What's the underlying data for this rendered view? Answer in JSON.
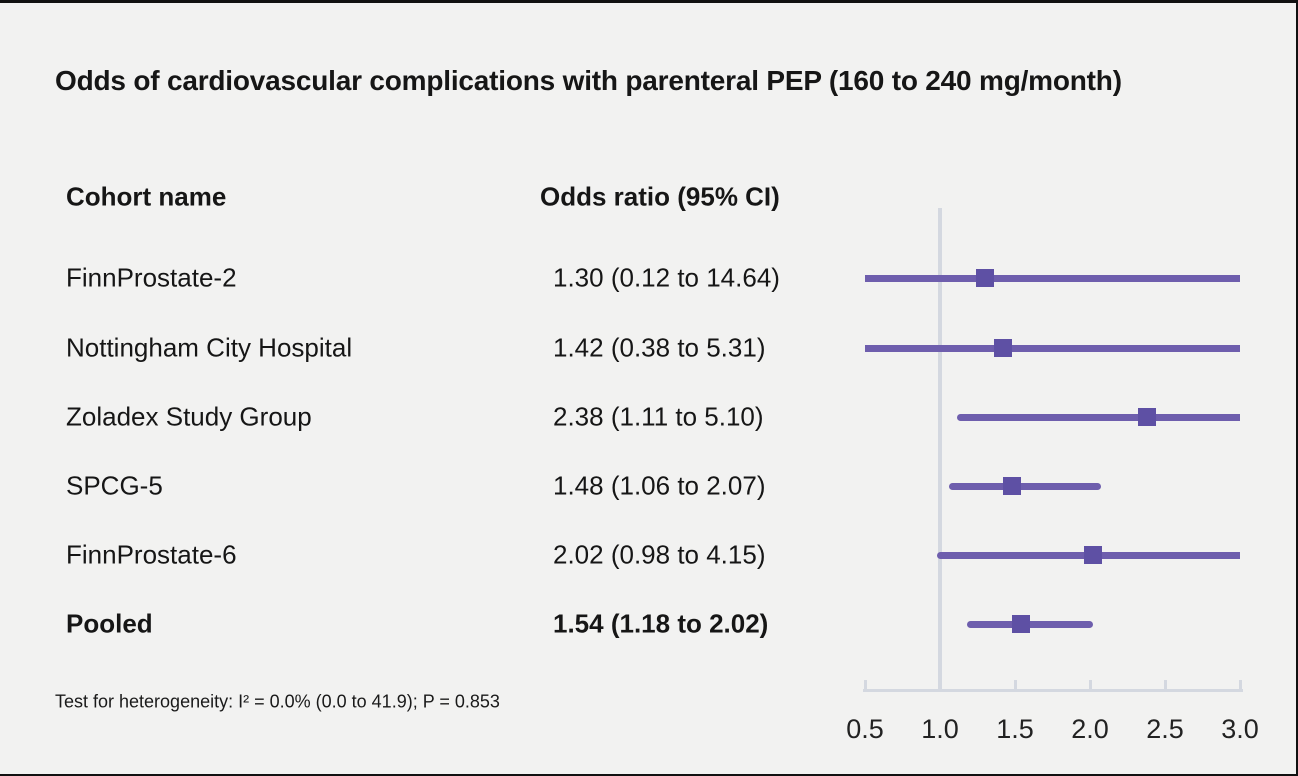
{
  "title": "Odds of cardiovascular complications with parenteral PEP (160 to 240 mg/month)",
  "table": {
    "cohort_header": "Cohort name",
    "or_header": "Odds ratio (95% CI)",
    "rows": [
      {
        "name": "FinnProstate-2",
        "or_text": "1.30 (0.12 to 14.64)",
        "bold": false
      },
      {
        "name": "Nottingham City Hospital",
        "or_text": "1.42 (0.38 to 5.31)",
        "bold": false
      },
      {
        "name": "Zoladex Study Group",
        "or_text": "2.38 (1.11 to 5.10)",
        "bold": false
      },
      {
        "name": "SPCG-5",
        "or_text": "1.48 (1.06 to 2.07)",
        "bold": false
      },
      {
        "name": "FinnProstate-6",
        "or_text": "2.02 (0.98 to 4.15)",
        "bold": false
      },
      {
        "name": "Pooled",
        "or_text": "1.54 (1.18 to 2.02)",
        "bold": true
      }
    ]
  },
  "footnote": "Test for heterogeneity: I² = 0.0% (0.0 to 41.9); P = 0.853",
  "colors": {
    "background": "#f2f2f1",
    "text": "#161616",
    "ci_line": "#6e5ead",
    "marker": "#5e50a4",
    "axis": "#d4d8e0",
    "tick_label": "#222222"
  },
  "chart_data": {
    "type": "scatter",
    "subtype": "forest-plot",
    "title": "Odds of cardiovascular complications with parenteral PEP (160 to 240 mg/month)",
    "xlabel": "Odds ratio (95% CI)",
    "xlim": [
      0.5,
      3.0
    ],
    "x_ticks": [
      0.5,
      1.0,
      1.5,
      2.0,
      2.5,
      3.0
    ],
    "reference_line": 1.0,
    "grid": false,
    "legend": "none",
    "series": [
      {
        "name": "FinnProstate-2",
        "estimate": 1.3,
        "ci_low": 0.12,
        "ci_high": 14.64,
        "pooled": false
      },
      {
        "name": "Nottingham City Hospital",
        "estimate": 1.42,
        "ci_low": 0.38,
        "ci_high": 5.31,
        "pooled": false
      },
      {
        "name": "Zoladex Study Group",
        "estimate": 2.38,
        "ci_low": 1.11,
        "ci_high": 5.1,
        "pooled": false
      },
      {
        "name": "SPCG-5",
        "estimate": 1.48,
        "ci_low": 1.06,
        "ci_high": 2.07,
        "pooled": false
      },
      {
        "name": "FinnProstate-6",
        "estimate": 2.02,
        "ci_low": 0.98,
        "ci_high": 4.15,
        "pooled": false
      },
      {
        "name": "Pooled",
        "estimate": 1.54,
        "ci_low": 1.18,
        "ci_high": 2.02,
        "pooled": true
      }
    ],
    "heterogeneity_note": "Test for heterogeneity: I² = 0.0% (0.0 to 41.9); P = 0.853"
  }
}
